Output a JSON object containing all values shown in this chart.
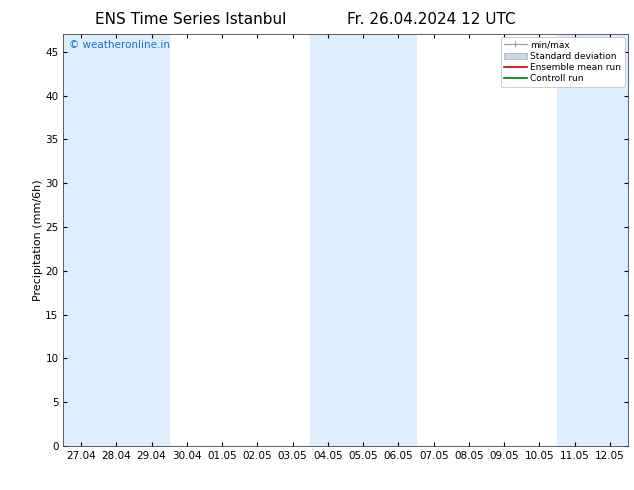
{
  "title_left": "ENS Time Series Istanbul",
  "title_right": "Fr. 26.04.2024 12 UTC",
  "ylabel": "Precipitation (mm/6h)",
  "watermark": "© weatheronline.in",
  "watermark_color": "#1a6fd4",
  "ylim": [
    0,
    47
  ],
  "yticks": [
    0,
    5,
    10,
    15,
    20,
    25,
    30,
    35,
    40,
    45
  ],
  "xtick_labels": [
    "27.04",
    "28.04",
    "29.04",
    "30.04",
    "01.05",
    "02.05",
    "03.05",
    "04.05",
    "05.05",
    "06.05",
    "07.05",
    "08.05",
    "09.05",
    "10.05",
    "11.05",
    "12.05"
  ],
  "background_color": "#ffffff",
  "plot_bg_color": "#ffffff",
  "shaded_band_color": "#ddeeff",
  "legend_labels": [
    "min/max",
    "Standard deviation",
    "Ensemble mean run",
    "Controll run"
  ],
  "legend_colors": [
    "#aaaaaa",
    "#c8d8e8",
    "#ff0000",
    "#007700"
  ],
  "title_fontsize": 11,
  "tick_fontsize": 7.5,
  "ylabel_fontsize": 8,
  "watermark_fontsize": 7.5
}
